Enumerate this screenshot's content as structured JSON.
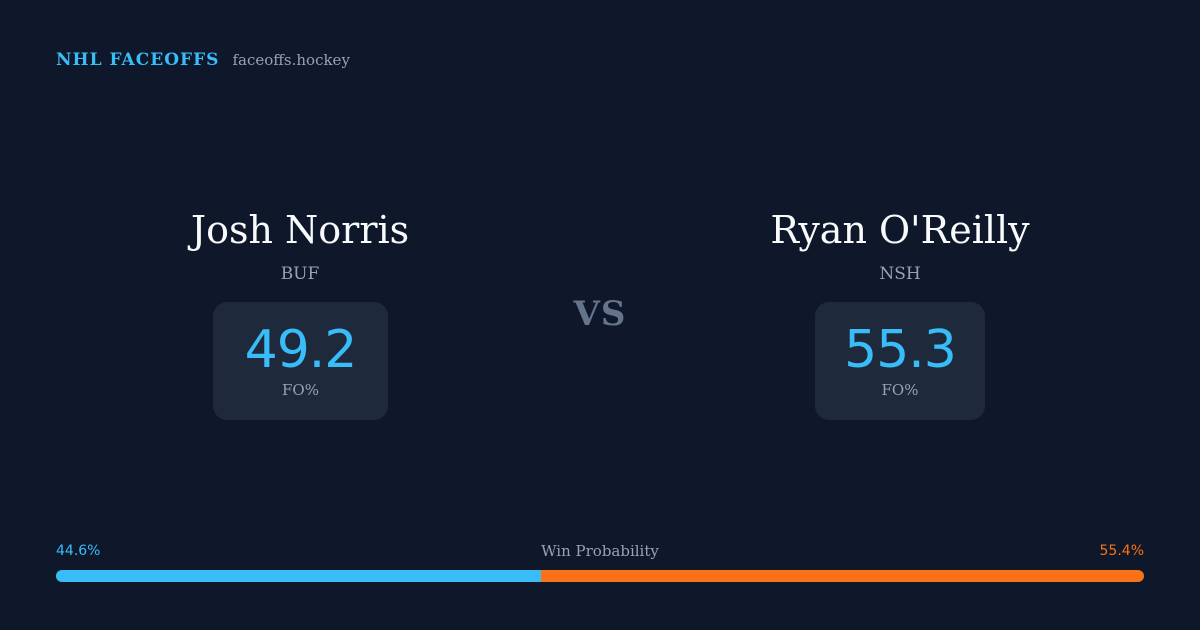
{
  "brand": {
    "title": "NHL FACEOFFS",
    "site": "faceoffs.hockey"
  },
  "players": [
    {
      "name": "Josh Norris",
      "team": "BUF",
      "stat_value": "49.2",
      "stat_label": "FO%"
    },
    {
      "name": "Ryan O'Reilly",
      "team": "NSH",
      "stat_value": "55.3",
      "stat_label": "FO%"
    }
  ],
  "vs_label": "VS",
  "win_probability": {
    "title": "Win Probability",
    "left_label": "44.6%",
    "right_label": "55.4%",
    "left_value": 44.6,
    "right_value": 55.4,
    "left_color": "#38bdf8",
    "right_color": "#f97316"
  },
  "colors": {
    "background": "#0f172a",
    "card": "#1e293b",
    "accent": "#38bdf8",
    "secondary": "#f97316"
  }
}
